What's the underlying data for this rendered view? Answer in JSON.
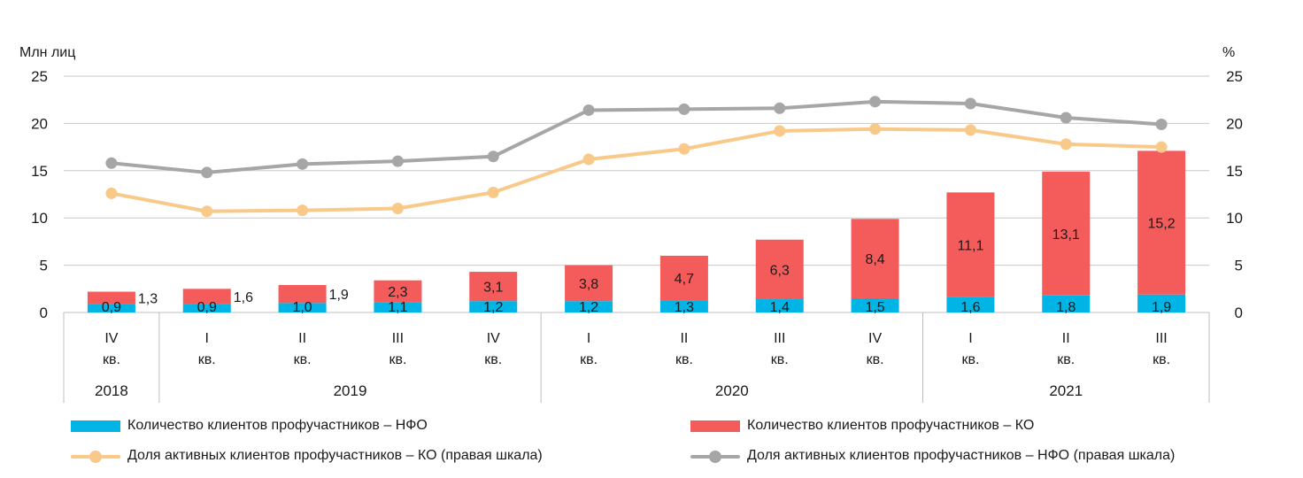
{
  "chart_data": {
    "type": "bar",
    "stacked": true,
    "left_axis_title": "Млн лиц",
    "right_axis_title": "%",
    "ylim": [
      0,
      25
    ],
    "y2lim": [
      0,
      25
    ],
    "yticks": [
      "0",
      "5",
      "10",
      "15",
      "20",
      "25"
    ],
    "categories": [
      {
        "quarter": "IV",
        "suffix": "кв."
      },
      {
        "quarter": "I",
        "suffix": "кв."
      },
      {
        "quarter": "II",
        "suffix": "кв."
      },
      {
        "quarter": "III",
        "suffix": "кв."
      },
      {
        "quarter": "IV",
        "suffix": "кв."
      },
      {
        "quarter": "I",
        "suffix": "кв."
      },
      {
        "quarter": "II",
        "suffix": "кв."
      },
      {
        "quarter": "III",
        "suffix": "кв."
      },
      {
        "quarter": "IV",
        "suffix": "кв."
      },
      {
        "quarter": "I",
        "suffix": "кв."
      },
      {
        "quarter": "II",
        "suffix": "кв."
      },
      {
        "quarter": "III",
        "suffix": "кв."
      }
    ],
    "years": [
      {
        "label": "2018",
        "from": 0,
        "to": 0
      },
      {
        "label": "2019",
        "from": 1,
        "to": 4
      },
      {
        "label": "2020",
        "from": 5,
        "to": 8
      },
      {
        "label": "2021",
        "from": 9,
        "to": 11
      }
    ],
    "series": [
      {
        "name": "Количество клиентов профучастников – НФО",
        "kind": "bar",
        "color": "#00b4e6",
        "values": [
          0.9,
          0.9,
          1.0,
          1.1,
          1.2,
          1.2,
          1.3,
          1.4,
          1.5,
          1.6,
          1.8,
          1.9
        ],
        "labels": [
          "0,9",
          "0,9",
          "1,0",
          "1,1",
          "1,2",
          "1,2",
          "1,3",
          "1,4",
          "1,5",
          "1,6",
          "1,8",
          "1,9"
        ]
      },
      {
        "name": "Количество клиентов профучастников – КО",
        "kind": "bar",
        "color": "#f45c5c",
        "values": [
          1.3,
          1.6,
          1.9,
          2.3,
          3.1,
          3.8,
          4.7,
          6.3,
          8.4,
          11.1,
          13.1,
          15.2
        ],
        "labels": [
          "1,3",
          "1,6",
          "1,9",
          "2,3",
          "3,1",
          "3,8",
          "4,7",
          "6,3",
          "8,4",
          "11,1",
          "13,1",
          "15,2"
        ]
      },
      {
        "name": "Доля активных клиентов профучастников – КО (правая шкала)",
        "kind": "line",
        "axis": "right",
        "color": "#f9c98a",
        "values": [
          12.6,
          10.7,
          10.8,
          11.0,
          12.7,
          16.2,
          17.3,
          19.2,
          19.4,
          19.3,
          17.8,
          17.5
        ]
      },
      {
        "name": "Доля активных клиентов профучастников – НФО (правая шкала)",
        "kind": "line",
        "axis": "right",
        "color": "#a6a6a6",
        "values": [
          15.8,
          14.8,
          15.7,
          16.0,
          16.5,
          21.4,
          21.5,
          21.6,
          22.3,
          22.1,
          20.6,
          19.9
        ]
      }
    ]
  }
}
